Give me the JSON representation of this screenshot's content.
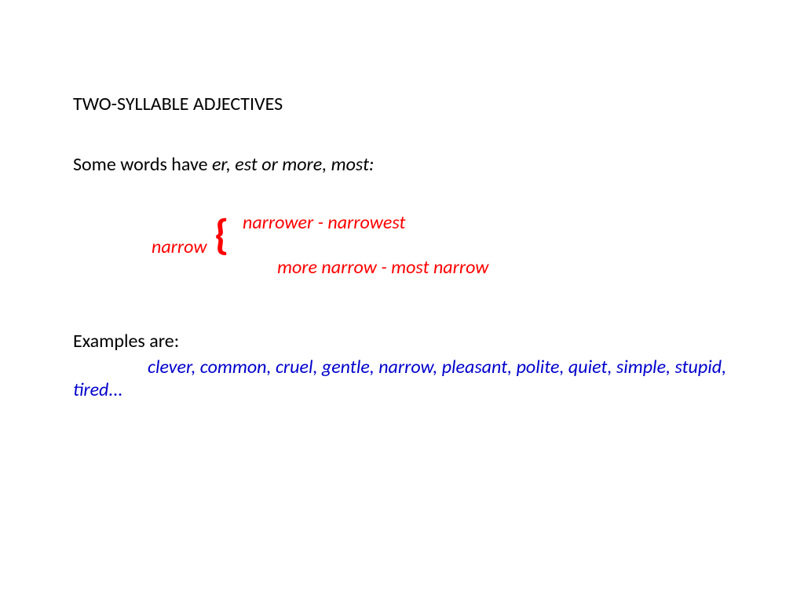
{
  "title": "TWO-SYLLABLE ADJECTIVES",
  "intro_plain": "Some words have ",
  "intro_italic": "er, est or more, most:",
  "narrow": {
    "base": "narrow",
    "brace": "{",
    "option1": "narrower - narrowest",
    "option2": "more narrow  - most narrow"
  },
  "examples_label": "Examples are:",
  "examples_line1": "clever, common, cruel, gentle, narrow, pleasant, polite, quiet, simple, stupid,",
  "examples_line2": "tired...",
  "colors": {
    "text_black": "#000000",
    "text_red": "#ff0000",
    "text_blue": "#0000cc",
    "background": "#ffffff"
  },
  "typography": {
    "body_fontsize": 24,
    "brace_fontsize": 54,
    "font_family": "Calibri"
  }
}
